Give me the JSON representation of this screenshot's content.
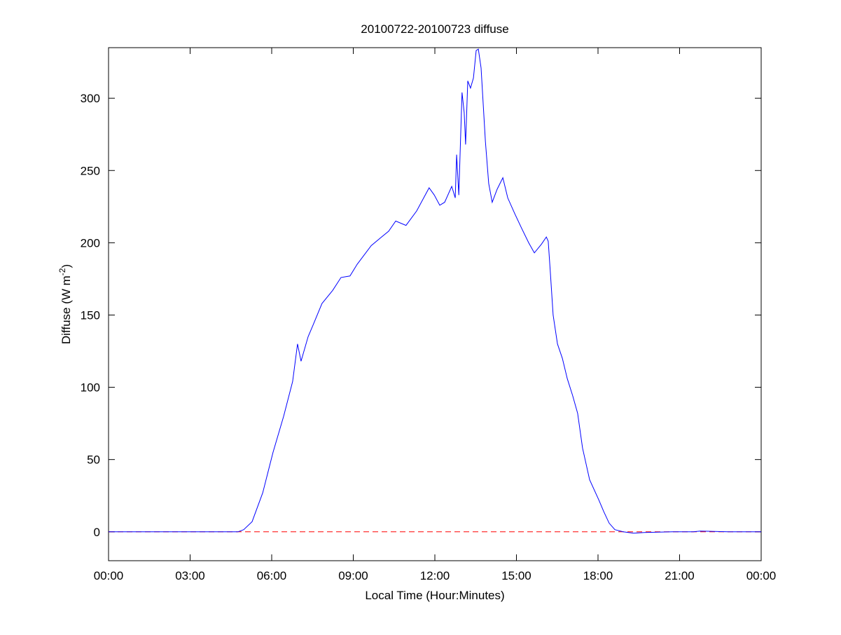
{
  "chart_data": {
    "type": "line",
    "title": "20100722-20100723 diffuse",
    "xlabel": "Local Time (Hour:Minutes)",
    "ylabel_main": "Diffuse (W m",
    "ylabel_sup": "-2",
    "ylabel_close": ")",
    "xlim_hours": [
      0,
      24
    ],
    "ylim": [
      -20,
      335
    ],
    "x_ticks": [
      0,
      3,
      6,
      9,
      12,
      15,
      18,
      21,
      24
    ],
    "x_tick_labels": [
      "00:00",
      "03:00",
      "06:00",
      "09:00",
      "12:00",
      "15:00",
      "18:00",
      "21:00",
      "00:00"
    ],
    "y_ticks": [
      0,
      50,
      100,
      150,
      200,
      250,
      300
    ],
    "y_tick_labels": [
      "0",
      "50",
      "100",
      "150",
      "200",
      "250",
      "300"
    ],
    "grid": false,
    "colors": {
      "series": "#0000ff",
      "reference": "#ff0000",
      "axes": "#000000"
    },
    "reference_line": {
      "y": 0,
      "style": "dashed"
    },
    "series": [
      {
        "x_hours": [
          0,
          4.76,
          4.97,
          5.28,
          5.67,
          6.05,
          6.44,
          6.77,
          6.95,
          7.08,
          7.34,
          7.52,
          7.85,
          8.24,
          8.55,
          8.88,
          9.14,
          9.66,
          10.04,
          10.3,
          10.56,
          10.94,
          11.33,
          11.79,
          11.98,
          12.18,
          12.36,
          12.62,
          12.75,
          12.8,
          12.88,
          13.0,
          13.08,
          13.13,
          13.21,
          13.31,
          13.42,
          13.52,
          13.6,
          13.7,
          13.86,
          13.98,
          14.11,
          14.29,
          14.5,
          14.68,
          14.94,
          15.19,
          15.45,
          15.66,
          15.92,
          16.1,
          16.17,
          16.25,
          16.35,
          16.51,
          16.69,
          16.87,
          17.07,
          17.25,
          17.43,
          17.69,
          18.03,
          18.21,
          18.41,
          18.62,
          18.93,
          19.31,
          19.7,
          20.73,
          21.5,
          21.76,
          22.79,
          24
        ],
        "values": [
          0,
          0,
          1.5,
          7,
          27,
          55,
          80,
          104,
          130,
          118,
          135,
          143,
          158,
          167,
          176,
          177,
          185,
          198,
          204,
          208,
          215,
          212,
          222,
          238,
          233,
          226,
          228,
          239,
          231,
          261,
          233,
          304,
          290,
          268,
          312,
          307,
          314,
          333,
          334,
          321,
          270,
          241,
          228,
          237,
          245,
          231,
          220,
          210,
          200,
          193,
          199,
          204,
          201,
          179,
          150,
          130,
          120,
          106,
          94,
          82,
          58,
          36,
          22,
          14,
          6,
          1.5,
          0,
          -1,
          -0.5,
          0,
          0,
          0.5,
          0,
          0
        ]
      }
    ]
  }
}
